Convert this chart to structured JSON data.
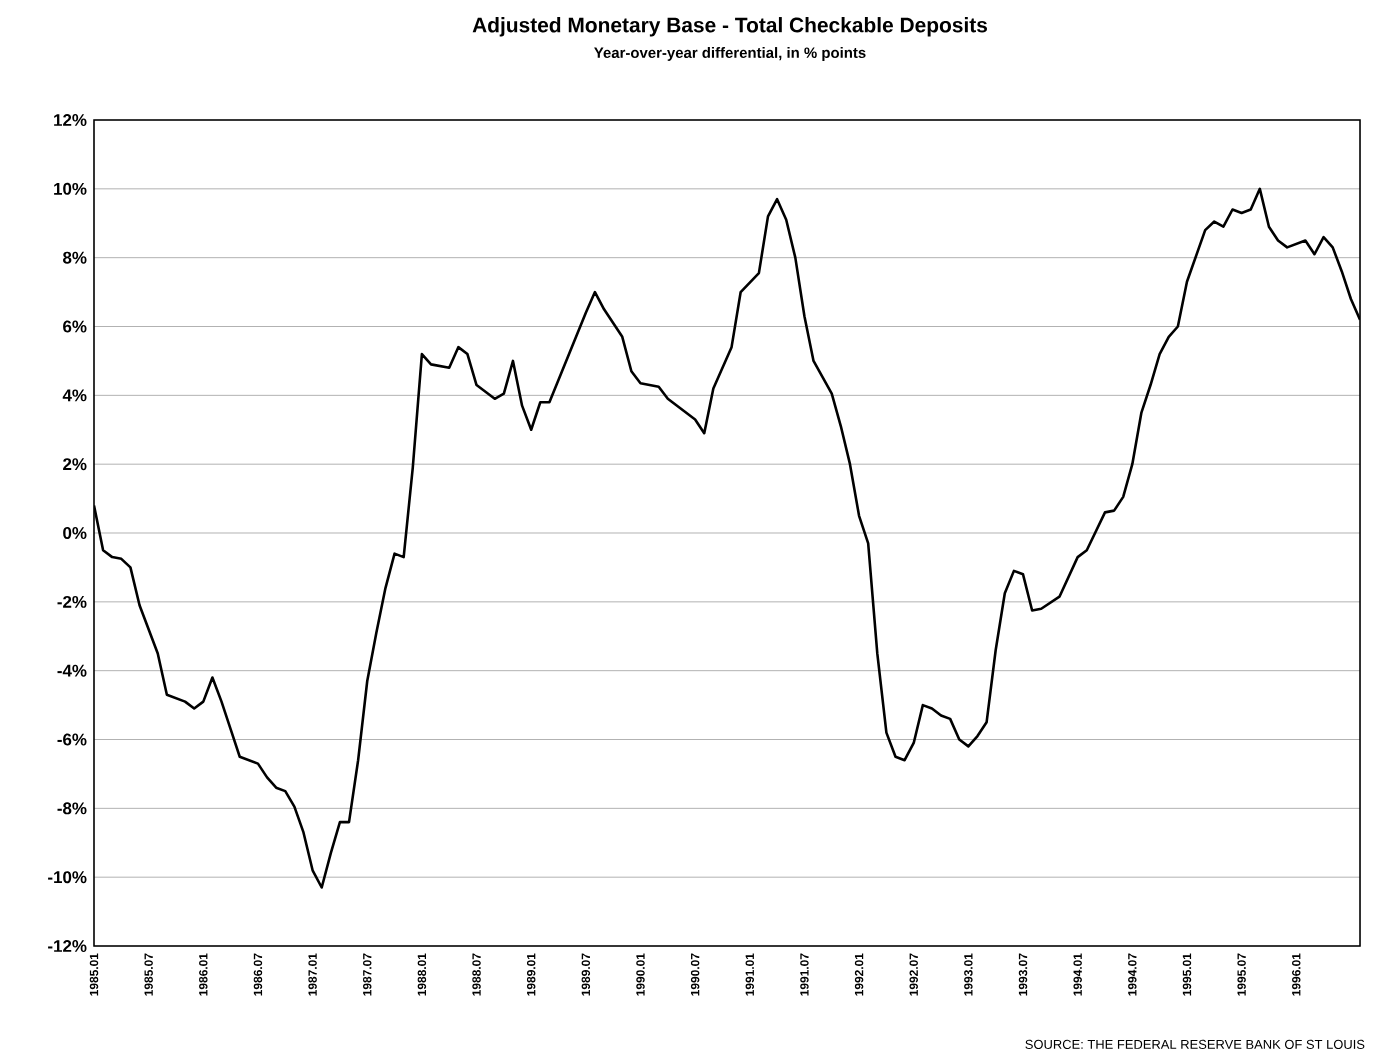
{
  "chart_data": {
    "type": "line",
    "title": "Adjusted Monetary Base - Total Checkable Deposits",
    "subtitle": "Year-over-year differential, in % points",
    "annotations": [
      "SOURCE: THE FEDERAL RESERVE BANK OF ST LOUIS"
    ],
    "x": [
      "1985-01",
      "1985-02",
      "1985-03",
      "1985-04",
      "1985-05",
      "1985-06",
      "1985-08",
      "1985-09",
      "1985-11",
      "1985-12",
      "1986-01",
      "1986-02",
      "1986-03",
      "1986-04",
      "1986-05",
      "1986-07",
      "1986-08",
      "1986-09",
      "1986-10",
      "1986-11",
      "1986-12",
      "1987-01",
      "1987-02",
      "1987-03",
      "1987-04",
      "1987-05",
      "1987-06",
      "1987-07",
      "1987-08",
      "1987-09",
      "1987-10",
      "1987-11",
      "1987-12",
      "1988-01",
      "1988-02",
      "1988-04",
      "1988-05",
      "1988-06",
      "1988-07",
      "1988-09",
      "1988-10",
      "1988-11",
      "1988-12",
      "1989-01",
      "1989-02",
      "1989-03",
      "1989-05",
      "1989-07",
      "1989-08",
      "1989-09",
      "1989-11",
      "1989-12",
      "1990-01",
      "1990-03",
      "1990-04",
      "1990-06",
      "1990-07",
      "1990-08",
      "1990-09",
      "1990-11",
      "1990-12",
      "1991-02",
      "1991-03",
      "1991-04",
      "1991-05",
      "1991-06",
      "1991-07",
      "1991-08",
      "1991-10",
      "1991-11",
      "1991-12",
      "1992-01",
      "1992-02",
      "1992-03",
      "1992-04",
      "1992-05",
      "1992-06",
      "1992-07",
      "1992-08",
      "1992-09",
      "1992-10",
      "1992-11",
      "1992-12",
      "1993-01",
      "1993-02",
      "1993-03",
      "1993-04",
      "1993-05",
      "1993-06",
      "1993-07",
      "1993-08",
      "1993-09",
      "1993-11",
      "1994-01",
      "1994-02",
      "1994-04",
      "1994-05",
      "1994-06",
      "1994-07",
      "1994-08",
      "1994-09",
      "1994-10",
      "1994-11",
      "1994-12",
      "1995-01",
      "1995-03",
      "1995-04",
      "1995-05",
      "1995-06",
      "1995-07",
      "1995-08",
      "1995-09",
      "1995-10",
      "1995-11",
      "1995-12",
      "1996-02",
      "1996-03",
      "1996-04",
      "1996-05",
      "1996-06",
      "1996-07",
      "1996-08"
    ],
    "series": [
      {
        "color": "#000000",
        "values": [
          0.8,
          -0.5,
          -0.7,
          -0.75,
          -1.0,
          -2.1,
          -3.5,
          -4.7,
          -4.9,
          -5.1,
          -4.9,
          -4.2,
          -4.9,
          -5.7,
          -6.5,
          -6.7,
          -7.1,
          -7.4,
          -7.5,
          -7.95,
          -8.7,
          -9.8,
          -10.3,
          -9.3,
          -8.4,
          -8.4,
          -6.6,
          -4.3,
          -2.9,
          -1.6,
          -0.6,
          -0.7,
          1.9,
          5.2,
          4.9,
          4.8,
          5.4,
          5.2,
          4.3,
          3.9,
          4.05,
          5.0,
          3.7,
          3.0,
          3.8,
          3.8,
          5.1,
          6.4,
          7.0,
          6.5,
          5.7,
          4.7,
          4.35,
          4.25,
          3.9,
          3.5,
          3.3,
          2.9,
          4.2,
          5.4,
          7.0,
          7.55,
          9.2,
          9.7,
          9.1,
          8.0,
          6.3,
          5.0,
          4.05,
          3.1,
          2.0,
          0.5,
          -0.3,
          -3.5,
          -5.8,
          -6.5,
          -6.6,
          -6.1,
          -5.0,
          -5.1,
          -5.3,
          -5.4,
          -6.0,
          -6.2,
          -5.9,
          -5.5,
          -3.4,
          -1.75,
          -1.1,
          -1.2,
          -2.25,
          -2.2,
          -1.85,
          -0.7,
          -0.5,
          0.6,
          0.65,
          1.05,
          2.0,
          3.5,
          4.3,
          5.2,
          5.7,
          6.0,
          7.3,
          8.8,
          9.05,
          8.9,
          9.4,
          9.3,
          9.4,
          10.0,
          8.9,
          8.5,
          8.3,
          8.5,
          8.1,
          8.6,
          8.3,
          7.6,
          6.8,
          6.2
        ]
      }
    ],
    "xlim": [
      "1985-01",
      "1996-08"
    ],
    "xticks": [
      {
        "value": "1985-01",
        "label": "1985.01"
      },
      {
        "value": "1985-07",
        "label": "1985.07"
      },
      {
        "value": "1986-01",
        "label": "1986.01"
      },
      {
        "value": "1986-07",
        "label": "1986.07"
      },
      {
        "value": "1987-01",
        "label": "1987.01"
      },
      {
        "value": "1987-07",
        "label": "1987.07"
      },
      {
        "value": "1988-01",
        "label": "1988.01"
      },
      {
        "value": "1988-07",
        "label": "1988.07"
      },
      {
        "value": "1989-01",
        "label": "1989.01"
      },
      {
        "value": "1989-07",
        "label": "1989.07"
      },
      {
        "value": "1990-01",
        "label": "1990.01"
      },
      {
        "value": "1990-07",
        "label": "1990.07"
      },
      {
        "value": "1991-01",
        "label": "1991.01"
      },
      {
        "value": "1991-07",
        "label": "1991.07"
      },
      {
        "value": "1992-01",
        "label": "1992.01"
      },
      {
        "value": "1992-07",
        "label": "1992.07"
      },
      {
        "value": "1993-01",
        "label": "1993.01"
      },
      {
        "value": "1993-07",
        "label": "1993.07"
      },
      {
        "value": "1994-01",
        "label": "1994.01"
      },
      {
        "value": "1994-07",
        "label": "1994.07"
      },
      {
        "value": "1995-01",
        "label": "1995.01"
      },
      {
        "value": "1995-07",
        "label": "1995.07"
      },
      {
        "value": "1996-01",
        "label": "1996.01"
      }
    ],
    "ylim": [
      -12,
      12
    ],
    "yticks": [
      {
        "value": -12,
        "label": "-12%"
      },
      {
        "value": -10,
        "label": "-10%"
      },
      {
        "value": -8,
        "label": "-8%"
      },
      {
        "value": -6,
        "label": "-6%"
      },
      {
        "value": -4,
        "label": "-4%"
      },
      {
        "value": -2,
        "label": "-2%"
      },
      {
        "value": 0,
        "label": "0%"
      },
      {
        "value": 2,
        "label": "2%"
      },
      {
        "value": 4,
        "label": "4%"
      },
      {
        "value": 6,
        "label": "6%"
      },
      {
        "value": 8,
        "label": "8%"
      },
      {
        "value": 10,
        "label": "10%"
      },
      {
        "value": 12,
        "label": "12%"
      }
    ],
    "grid": "y",
    "marker": "none",
    "line_style": "solid"
  }
}
